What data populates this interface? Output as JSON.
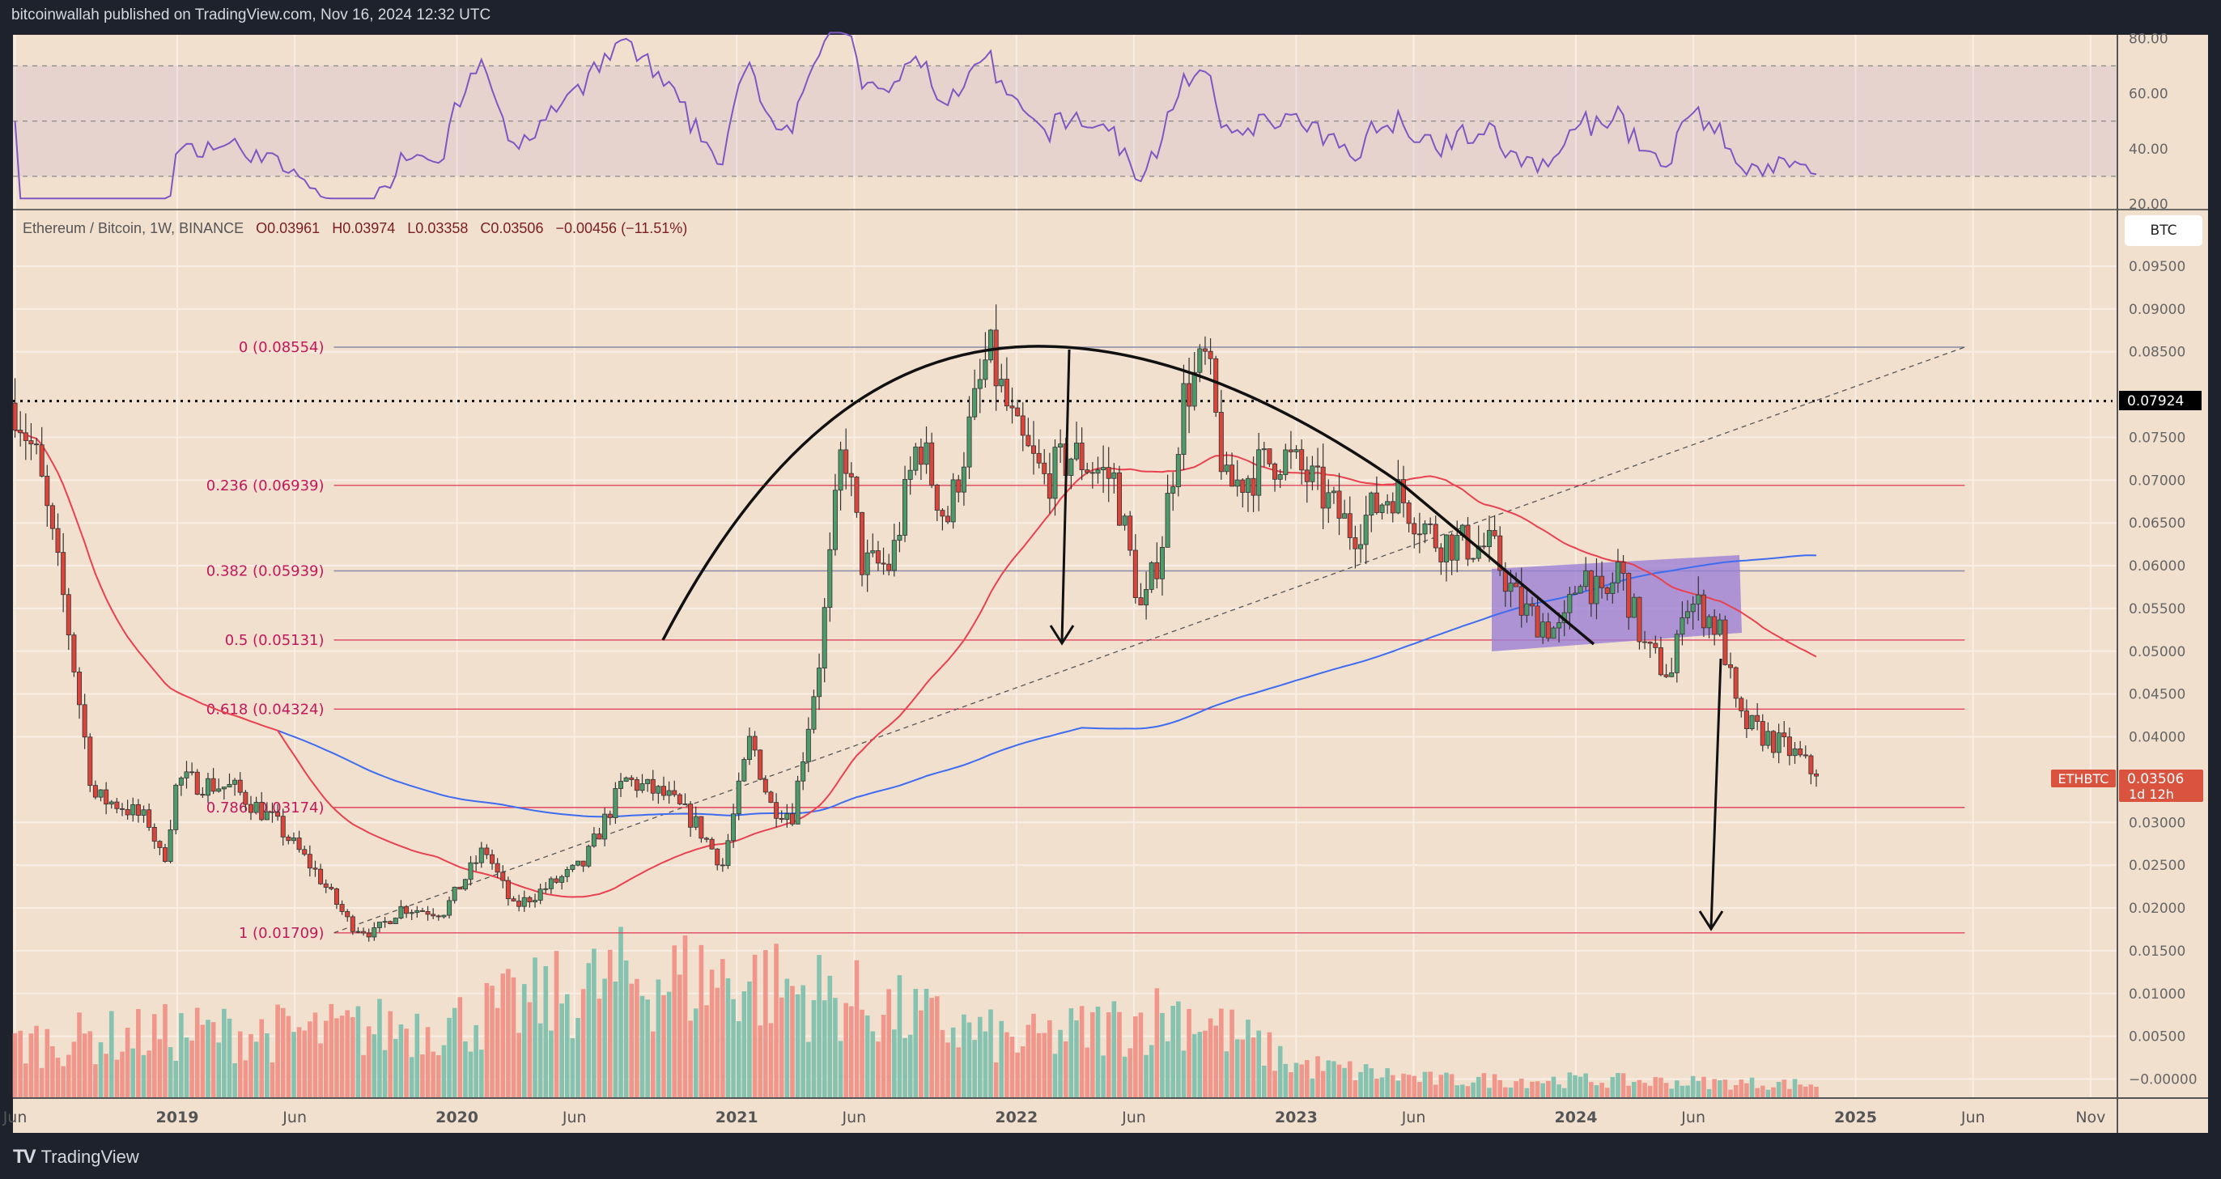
{
  "header": {
    "publisher_line": "bitcoinwallah published on TradingView.com, Nov 16, 2024 12:32 UTC"
  },
  "legend": {
    "symbol": "Ethereum / Bitcoin, 1W, BINANCE",
    "open": "O0.03961",
    "high": "H0.03974",
    "low": "L0.03358",
    "close": "C0.03506",
    "change": "−0.00456 (−11.51%)"
  },
  "currency_button": "BTC",
  "footer": {
    "brand": "TradingView",
    "logo": "17"
  },
  "colors": {
    "background": "#f2e0cf",
    "up": "#4e9a6b",
    "down": "#d9453a",
    "vol_up": "#85c2b0",
    "vol_down": "#f0968a",
    "rsi": "#7e57c2",
    "sma_fast": "#e8414f",
    "sma_slow": "#3d6cf0",
    "fib_red": "#e0455e",
    "fib_gray": "#8a8aa8",
    "box": "#9b7fd4"
  },
  "price_axis": {
    "ticks": [
      "0.09500",
      "0.09000",
      "0.08500",
      "0.07500",
      "0.07000",
      "0.06500",
      "0.06000",
      "0.05500",
      "0.05000",
      "0.04500",
      "0.04000",
      "0.03000",
      "0.02500",
      "0.02000",
      "0.01500",
      "0.01000",
      "0.00500",
      "−0.00000"
    ],
    "tick_values": [
      0.095,
      0.09,
      0.085,
      0.075,
      0.07,
      0.065,
      0.06,
      0.055,
      0.05,
      0.045,
      0.04,
      0.03,
      0.025,
      0.02,
      0.015,
      0.01,
      0.005,
      0
    ],
    "marked_level": {
      "label": "0.07924",
      "value": 0.07924
    },
    "last_price": {
      "symbol": "ETHBTC",
      "price": "0.03506",
      "countdown": "1d 12h",
      "value": 0.03506
    }
  },
  "rsi_axis": {
    "ticks": [
      "80.00",
      "60.00",
      "40.00",
      "20.00"
    ],
    "tick_values": [
      80,
      60,
      40,
      20
    ],
    "upper_band": 70,
    "mid": 50,
    "lower_band": 30
  },
  "time_axis": [
    {
      "label": "Jun",
      "t": 2018.42,
      "bold": false
    },
    {
      "label": "2019",
      "t": 2019.0,
      "bold": true
    },
    {
      "label": "Jun",
      "t": 2019.42,
      "bold": false
    },
    {
      "label": "2020",
      "t": 2020.0,
      "bold": true
    },
    {
      "label": "Jun",
      "t": 2020.42,
      "bold": false
    },
    {
      "label": "2021",
      "t": 2021.0,
      "bold": true
    },
    {
      "label": "Jun",
      "t": 2021.42,
      "bold": false
    },
    {
      "label": "2022",
      "t": 2022.0,
      "bold": true
    },
    {
      "label": "Jun",
      "t": 2022.42,
      "bold": false
    },
    {
      "label": "2023",
      "t": 2023.0,
      "bold": true
    },
    {
      "label": "Jun",
      "t": 2023.42,
      "bold": false
    },
    {
      "label": "2024",
      "t": 2024.0,
      "bold": true
    },
    {
      "label": "Jun",
      "t": 2024.42,
      "bold": false
    },
    {
      "label": "2025",
      "t": 2025.0,
      "bold": true
    },
    {
      "label": "Jun",
      "t": 2025.42,
      "bold": false
    },
    {
      "label": "Nov",
      "t": 2025.84,
      "bold": false
    }
  ],
  "fib_levels": [
    {
      "label": "0 (0.08554)",
      "value": 0.08554,
      "color": "gray"
    },
    {
      "label": "0.236 (0.06939)",
      "value": 0.06939,
      "color": "red"
    },
    {
      "label": "0.382 (0.05939)",
      "value": 0.05939,
      "color": "gray"
    },
    {
      "label": "0.5 (0.05131)",
      "value": 0.05131,
      "color": "red"
    },
    {
      "label": "0.618 (0.04324)",
      "value": 0.04324,
      "color": "red"
    },
    {
      "label": "0.786 (0.03174)",
      "value": 0.03174,
      "color": "red"
    },
    {
      "label": "1 (0.01709)",
      "value": 0.01709,
      "color": "red"
    }
  ],
  "chart_data": {
    "type": "candlestick",
    "title": "Ethereum / Bitcoin, 1W, BINANCE",
    "interval": "1W",
    "x_range": [
      2018.42,
      2024.87
    ],
    "ylim": [
      0,
      0.095
    ],
    "close_keypoints": [
      [
        2018.42,
        0.079
      ],
      [
        2018.5,
        0.072
      ],
      [
        2018.6,
        0.055
      ],
      [
        2018.7,
        0.033
      ],
      [
        2018.8,
        0.032
      ],
      [
        2018.9,
        0.03
      ],
      [
        2018.95,
        0.025
      ],
      [
        2019.0,
        0.035
      ],
      [
        2019.2,
        0.034
      ],
      [
        2019.35,
        0.03
      ],
      [
        2019.5,
        0.024
      ],
      [
        2019.62,
        0.018
      ],
      [
        2019.7,
        0.017
      ],
      [
        2019.8,
        0.02
      ],
      [
        2019.95,
        0.0195
      ],
      [
        2020.1,
        0.027
      ],
      [
        2020.2,
        0.02
      ],
      [
        2020.35,
        0.023
      ],
      [
        2020.45,
        0.025
      ],
      [
        2020.6,
        0.035
      ],
      [
        2020.75,
        0.033
      ],
      [
        2020.85,
        0.03
      ],
      [
        2020.95,
        0.025
      ],
      [
        2021.05,
        0.04
      ],
      [
        2021.12,
        0.032
      ],
      [
        2021.2,
        0.031
      ],
      [
        2021.3,
        0.05
      ],
      [
        2021.38,
        0.075
      ],
      [
        2021.45,
        0.06
      ],
      [
        2021.55,
        0.06
      ],
      [
        2021.65,
        0.075
      ],
      [
        2021.75,
        0.065
      ],
      [
        2021.9,
        0.085
      ],
      [
        2022.0,
        0.075
      ],
      [
        2022.1,
        0.07
      ],
      [
        2022.2,
        0.073
      ],
      [
        2022.35,
        0.07
      ],
      [
        2022.45,
        0.054
      ],
      [
        2022.52,
        0.063
      ],
      [
        2022.6,
        0.08
      ],
      [
        2022.68,
        0.084
      ],
      [
        2022.75,
        0.069
      ],
      [
        2022.95,
        0.073
      ],
      [
        2023.05,
        0.07
      ],
      [
        2023.2,
        0.064
      ],
      [
        2023.35,
        0.069
      ],
      [
        2023.5,
        0.063
      ],
      [
        2023.7,
        0.062
      ],
      [
        2023.8,
        0.055
      ],
      [
        2023.95,
        0.052
      ],
      [
        2024.02,
        0.06
      ],
      [
        2024.1,
        0.055
      ],
      [
        2024.15,
        0.06
      ],
      [
        2024.25,
        0.05
      ],
      [
        2024.35,
        0.047
      ],
      [
        2024.38,
        0.056
      ],
      [
        2024.45,
        0.055
      ],
      [
        2024.52,
        0.052
      ],
      [
        2024.58,
        0.042
      ],
      [
        2024.68,
        0.04
      ],
      [
        2024.78,
        0.038
      ],
      [
        2024.87,
        0.03506
      ]
    ],
    "volume_profile": [
      [
        2018.42,
        0.25
      ],
      [
        2019.0,
        0.3
      ],
      [
        2019.5,
        0.3
      ],
      [
        2020.0,
        0.35
      ],
      [
        2020.6,
        0.55
      ],
      [
        2021.0,
        0.55
      ],
      [
        2021.4,
        0.45
      ],
      [
        2022.0,
        0.25
      ],
      [
        2022.6,
        0.4
      ],
      [
        2023.0,
        0.15
      ],
      [
        2023.5,
        0.08
      ],
      [
        2024.0,
        0.08
      ],
      [
        2024.87,
        0.06
      ]
    ],
    "indicators": [
      {
        "name": "SMA 50",
        "color": "sma_fast"
      },
      {
        "name": "SMA 200",
        "color": "sma_slow"
      },
      {
        "name": "RSI 14",
        "color": "rsi"
      }
    ]
  }
}
